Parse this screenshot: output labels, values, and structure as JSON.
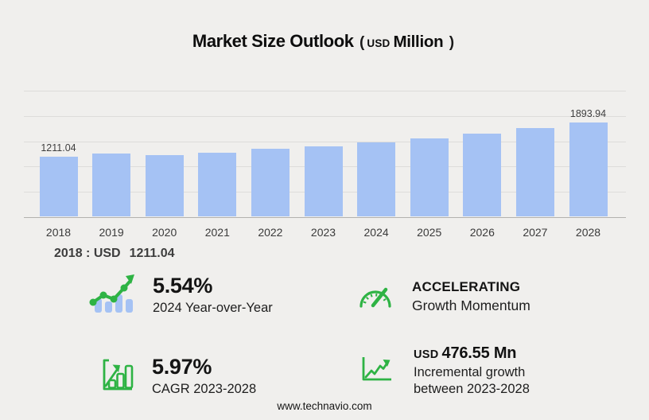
{
  "title": {
    "main": "Market Size Outlook",
    "open": "(",
    "currency": "USD",
    "unit": "Million",
    "close": ")"
  },
  "chart_data": {
    "type": "bar",
    "title": "Market Size Outlook (USD Million)",
    "unit": "USD Million",
    "categories": [
      "2018",
      "2019",
      "2020",
      "2021",
      "2022",
      "2023",
      "2024",
      "2025",
      "2026",
      "2027",
      "2028"
    ],
    "values": [
      1211.04,
      1274,
      1232,
      1290,
      1358,
      1417.39,
      1495.91,
      1578,
      1678,
      1785,
      1893.94
    ],
    "labeled_values": {
      "2018": "1211.04",
      "2028": "1893.94"
    },
    "ylim": [
      0,
      2550
    ],
    "grid": true,
    "legend": "none",
    "bar_color": "#a5c2f4"
  },
  "tooltip": {
    "label": "2018 : USD",
    "value": "1211.04"
  },
  "stats": {
    "yoy": {
      "value": "5.54%",
      "label": "2024 Year-over-Year"
    },
    "momentum": {
      "value": "ACCELERATING",
      "label": "Growth Momentum"
    },
    "cagr": {
      "value": "5.97%",
      "label": "CAGR 2023-2028"
    },
    "incremental": {
      "prefix": "USD",
      "value": "476.55 Mn",
      "label_line1": "Incremental growth",
      "label_line2": "between 2023-2028"
    }
  },
  "footer": {
    "website": "www.technavio.com"
  },
  "colors": {
    "background": "#f0efed",
    "bar": "#a5c2f4",
    "accent_green": "#2eb344",
    "gridline": "#dddcda"
  }
}
